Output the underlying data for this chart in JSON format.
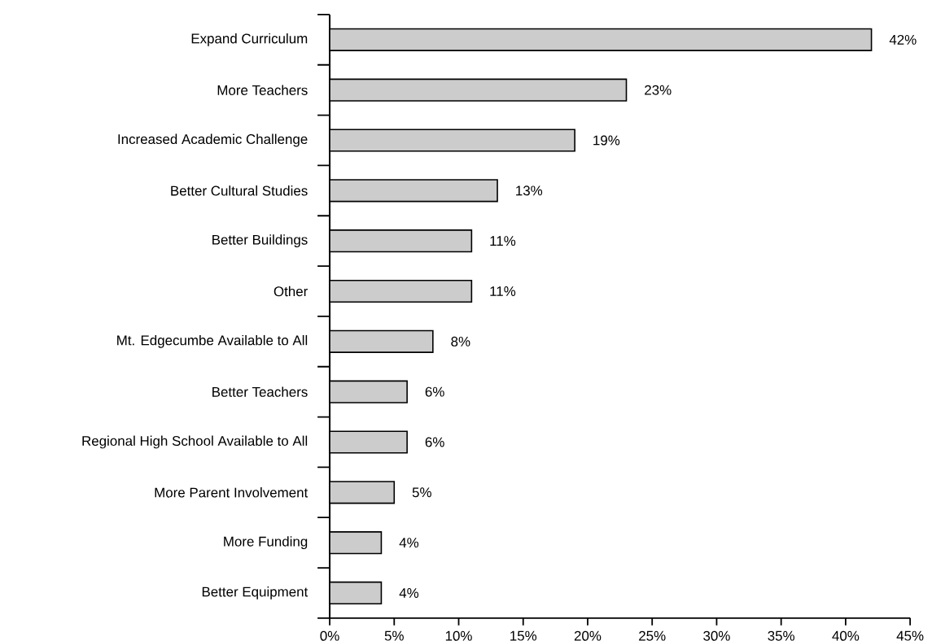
{
  "chart_data": {
    "type": "bar",
    "orientation": "horizontal",
    "categories": [
      "Expand Curriculum",
      "More Teachers",
      "Increased Academic Challenge",
      "Better Cultural Studies",
      "Better Buildings",
      "Other",
      "Mt. Edgecumbe Available to All",
      "Better Teachers",
      "Regional High School Available to All",
      "More Parent Involvement",
      "More Funding",
      "Better Equipment"
    ],
    "values": [
      42,
      23,
      19,
      13,
      11,
      11,
      8,
      6,
      6,
      5,
      4,
      4
    ],
    "value_labels": [
      "42%",
      "23%",
      "19%",
      "13%",
      "11%",
      "11%",
      "8%",
      "6%",
      "6%",
      "5%",
      "4%",
      "4%"
    ],
    "color": "#cccccc",
    "xlim": [
      0,
      45
    ],
    "xticks": [
      {
        "value": 0,
        "label": "0%"
      },
      {
        "value": 5,
        "label": "5%"
      },
      {
        "value": 10,
        "label": "10%"
      },
      {
        "value": 15,
        "label": "15%"
      },
      {
        "value": 20,
        "label": "20%"
      },
      {
        "value": 25,
        "label": "25%"
      },
      {
        "value": 30,
        "label": "30%"
      },
      {
        "value": 35,
        "label": "35%"
      },
      {
        "value": 40,
        "label": "40%"
      },
      {
        "value": 45,
        "label": "45%"
      }
    ]
  }
}
